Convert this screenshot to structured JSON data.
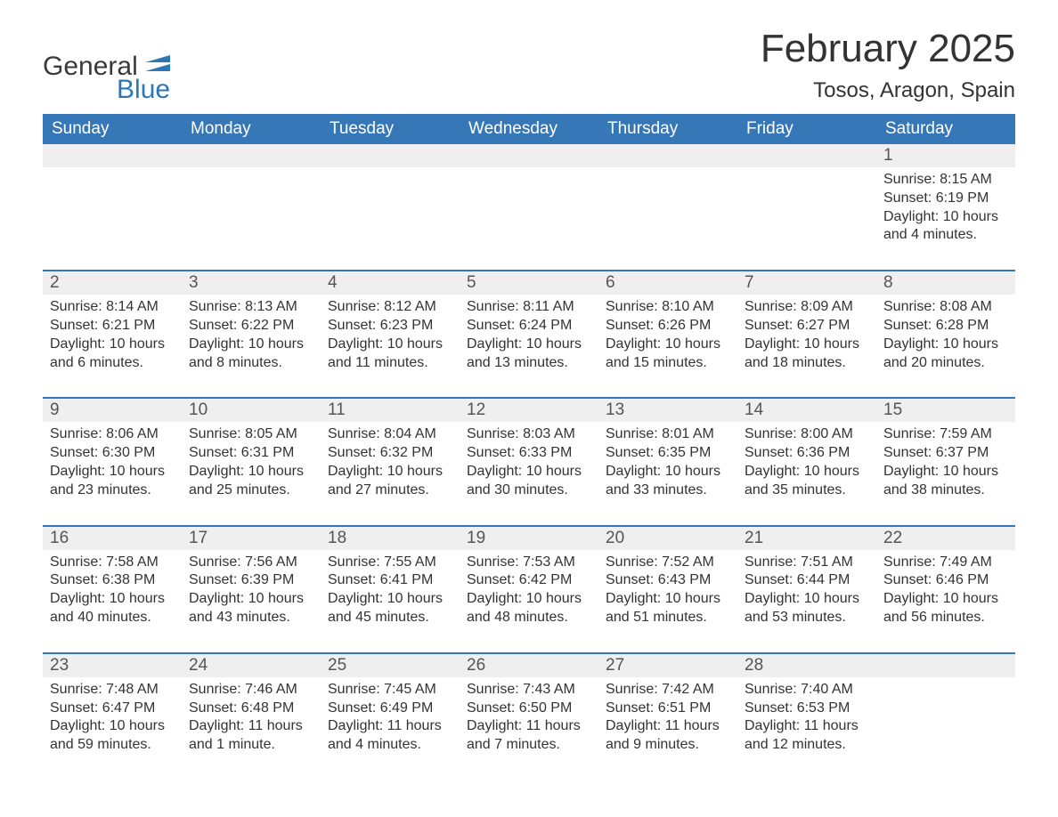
{
  "brand": {
    "general": "General",
    "blue": "Blue"
  },
  "colors": {
    "header_bg": "#3678b7",
    "header_text": "#ffffff",
    "strip_bg": "#efefef",
    "border": "#3678b7",
    "body_text": "#333333",
    "brand_blue": "#2d76b8",
    "page_bg": "#ffffff"
  },
  "fonts": {
    "title_size_pt": 33,
    "location_size_pt": 18,
    "dow_size_pt": 14,
    "body_size_pt": 12
  },
  "title": "February 2025",
  "location": "Tosos, Aragon, Spain",
  "days_of_week": [
    "Sunday",
    "Monday",
    "Tuesday",
    "Wednesday",
    "Thursday",
    "Friday",
    "Saturday"
  ],
  "labels": {
    "sunrise": "Sunrise:",
    "sunset": "Sunset:",
    "daylight": "Daylight:"
  },
  "weeks": [
    [
      {
        "blank": true
      },
      {
        "blank": true
      },
      {
        "blank": true
      },
      {
        "blank": true
      },
      {
        "blank": true
      },
      {
        "blank": true
      },
      {
        "num": "1",
        "sunrise": "8:15 AM",
        "sunset": "6:19 PM",
        "daylight": "10 hours and 4 minutes."
      }
    ],
    [
      {
        "num": "2",
        "sunrise": "8:14 AM",
        "sunset": "6:21 PM",
        "daylight": "10 hours and 6 minutes."
      },
      {
        "num": "3",
        "sunrise": "8:13 AM",
        "sunset": "6:22 PM",
        "daylight": "10 hours and 8 minutes."
      },
      {
        "num": "4",
        "sunrise": "8:12 AM",
        "sunset": "6:23 PM",
        "daylight": "10 hours and 11 minutes."
      },
      {
        "num": "5",
        "sunrise": "8:11 AM",
        "sunset": "6:24 PM",
        "daylight": "10 hours and 13 minutes."
      },
      {
        "num": "6",
        "sunrise": "8:10 AM",
        "sunset": "6:26 PM",
        "daylight": "10 hours and 15 minutes."
      },
      {
        "num": "7",
        "sunrise": "8:09 AM",
        "sunset": "6:27 PM",
        "daylight": "10 hours and 18 minutes."
      },
      {
        "num": "8",
        "sunrise": "8:08 AM",
        "sunset": "6:28 PM",
        "daylight": "10 hours and 20 minutes."
      }
    ],
    [
      {
        "num": "9",
        "sunrise": "8:06 AM",
        "sunset": "6:30 PM",
        "daylight": "10 hours and 23 minutes."
      },
      {
        "num": "10",
        "sunrise": "8:05 AM",
        "sunset": "6:31 PM",
        "daylight": "10 hours and 25 minutes."
      },
      {
        "num": "11",
        "sunrise": "8:04 AM",
        "sunset": "6:32 PM",
        "daylight": "10 hours and 27 minutes."
      },
      {
        "num": "12",
        "sunrise": "8:03 AM",
        "sunset": "6:33 PM",
        "daylight": "10 hours and 30 minutes."
      },
      {
        "num": "13",
        "sunrise": "8:01 AM",
        "sunset": "6:35 PM",
        "daylight": "10 hours and 33 minutes."
      },
      {
        "num": "14",
        "sunrise": "8:00 AM",
        "sunset": "6:36 PM",
        "daylight": "10 hours and 35 minutes."
      },
      {
        "num": "15",
        "sunrise": "7:59 AM",
        "sunset": "6:37 PM",
        "daylight": "10 hours and 38 minutes."
      }
    ],
    [
      {
        "num": "16",
        "sunrise": "7:58 AM",
        "sunset": "6:38 PM",
        "daylight": "10 hours and 40 minutes."
      },
      {
        "num": "17",
        "sunrise": "7:56 AM",
        "sunset": "6:39 PM",
        "daylight": "10 hours and 43 minutes."
      },
      {
        "num": "18",
        "sunrise": "7:55 AM",
        "sunset": "6:41 PM",
        "daylight": "10 hours and 45 minutes."
      },
      {
        "num": "19",
        "sunrise": "7:53 AM",
        "sunset": "6:42 PM",
        "daylight": "10 hours and 48 minutes."
      },
      {
        "num": "20",
        "sunrise": "7:52 AM",
        "sunset": "6:43 PM",
        "daylight": "10 hours and 51 minutes."
      },
      {
        "num": "21",
        "sunrise": "7:51 AM",
        "sunset": "6:44 PM",
        "daylight": "10 hours and 53 minutes."
      },
      {
        "num": "22",
        "sunrise": "7:49 AM",
        "sunset": "6:46 PM",
        "daylight": "10 hours and 56 minutes."
      }
    ],
    [
      {
        "num": "23",
        "sunrise": "7:48 AM",
        "sunset": "6:47 PM",
        "daylight": "10 hours and 59 minutes."
      },
      {
        "num": "24",
        "sunrise": "7:46 AM",
        "sunset": "6:48 PM",
        "daylight": "11 hours and 1 minute."
      },
      {
        "num": "25",
        "sunrise": "7:45 AM",
        "sunset": "6:49 PM",
        "daylight": "11 hours and 4 minutes."
      },
      {
        "num": "26",
        "sunrise": "7:43 AM",
        "sunset": "6:50 PM",
        "daylight": "11 hours and 7 minutes."
      },
      {
        "num": "27",
        "sunrise": "7:42 AM",
        "sunset": "6:51 PM",
        "daylight": "11 hours and 9 minutes."
      },
      {
        "num": "28",
        "sunrise": "7:40 AM",
        "sunset": "6:53 PM",
        "daylight": "11 hours and 12 minutes."
      },
      {
        "blank": true
      }
    ]
  ]
}
